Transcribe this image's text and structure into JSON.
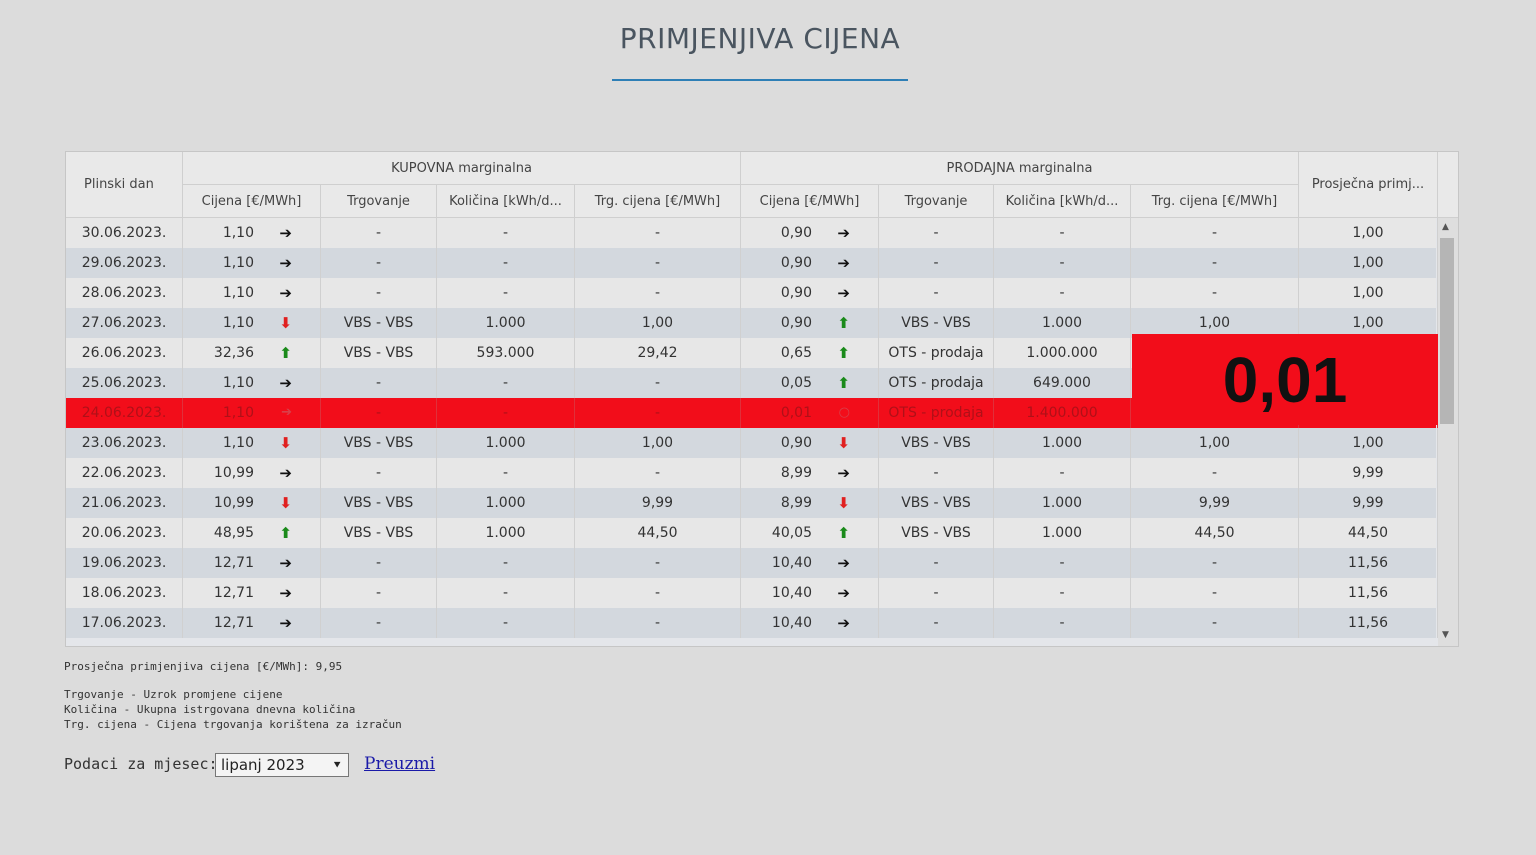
{
  "title": "PRIMJENJIVA CIJENA",
  "headers": {
    "plinski_dan": "Plinski dan",
    "kupovna": "KUPOVNA marginalna",
    "prodajna": "PRODAJNA marginalna",
    "prosjecna": "Prosječna primj...",
    "cijena": "Cijena [€/MWh]",
    "trgovanje": "Trgovanje",
    "kolicina": "Količina [kWh/d...",
    "trg_cijena": "Trg. cijena [€/MWh]"
  },
  "rows": [
    {
      "date": "30.06.2023.",
      "buy_price": "1,10",
      "buy_dir": "flat",
      "buy_trade": "-",
      "buy_qty": "-",
      "buy_tprice": "-",
      "sell_price": "0,90",
      "sell_dir": "flat",
      "sell_trade": "-",
      "sell_qty": "-",
      "sell_tprice": "-",
      "avg": "1,00"
    },
    {
      "date": "29.06.2023.",
      "buy_price": "1,10",
      "buy_dir": "flat",
      "buy_trade": "-",
      "buy_qty": "-",
      "buy_tprice": "-",
      "sell_price": "0,90",
      "sell_dir": "flat",
      "sell_trade": "-",
      "sell_qty": "-",
      "sell_tprice": "-",
      "avg": "1,00"
    },
    {
      "date": "28.06.2023.",
      "buy_price": "1,10",
      "buy_dir": "flat",
      "buy_trade": "-",
      "buy_qty": "-",
      "buy_tprice": "-",
      "sell_price": "0,90",
      "sell_dir": "flat",
      "sell_trade": "-",
      "sell_qty": "-",
      "sell_tprice": "-",
      "avg": "1,00"
    },
    {
      "date": "27.06.2023.",
      "buy_price": "1,10",
      "buy_dir": "down",
      "buy_trade": "VBS - VBS",
      "buy_qty": "1.000",
      "buy_tprice": "1,00",
      "sell_price": "0,90",
      "sell_dir": "up",
      "sell_trade": "VBS - VBS",
      "sell_qty": "1.000",
      "sell_tprice": "1,00",
      "avg": "1,00"
    },
    {
      "date": "26.06.2023.",
      "buy_price": "32,36",
      "buy_dir": "up",
      "buy_trade": "VBS - VBS",
      "buy_qty": "593.000",
      "buy_tprice": "29,42",
      "sell_price": "0,65",
      "sell_dir": "up",
      "sell_trade": "OTS - prodaja",
      "sell_qty": "1.000.000",
      "sell_tprice": "",
      "avg": ""
    },
    {
      "date": "25.06.2023.",
      "buy_price": "1,10",
      "buy_dir": "flat",
      "buy_trade": "-",
      "buy_qty": "-",
      "buy_tprice": "-",
      "sell_price": "0,05",
      "sell_dir": "up",
      "sell_trade": "OTS - prodaja",
      "sell_qty": "649.000",
      "sell_tprice": "",
      "avg": ""
    },
    {
      "date": "24.06.2023.",
      "buy_price": "1,10",
      "buy_dir": "flat",
      "buy_trade": "-",
      "buy_qty": "-",
      "buy_tprice": "-",
      "sell_price": "0,01",
      "sell_dir": "circle",
      "sell_trade": "OTS - prodaja",
      "sell_qty": "1.400.000",
      "sell_tprice": "",
      "avg": "",
      "highlight": true
    },
    {
      "date": "23.06.2023.",
      "buy_price": "1,10",
      "buy_dir": "down",
      "buy_trade": "VBS - VBS",
      "buy_qty": "1.000",
      "buy_tprice": "1,00",
      "sell_price": "0,90",
      "sell_dir": "down",
      "sell_trade": "VBS - VBS",
      "sell_qty": "1.000",
      "sell_tprice": "1,00",
      "avg": "1,00"
    },
    {
      "date": "22.06.2023.",
      "buy_price": "10,99",
      "buy_dir": "flat",
      "buy_trade": "-",
      "buy_qty": "-",
      "buy_tprice": "-",
      "sell_price": "8,99",
      "sell_dir": "flat",
      "sell_trade": "-",
      "sell_qty": "-",
      "sell_tprice": "-",
      "avg": "9,99"
    },
    {
      "date": "21.06.2023.",
      "buy_price": "10,99",
      "buy_dir": "down",
      "buy_trade": "VBS - VBS",
      "buy_qty": "1.000",
      "buy_tprice": "9,99",
      "sell_price": "8,99",
      "sell_dir": "down",
      "sell_trade": "VBS - VBS",
      "sell_qty": "1.000",
      "sell_tprice": "9,99",
      "avg": "9,99"
    },
    {
      "date": "20.06.2023.",
      "buy_price": "48,95",
      "buy_dir": "up",
      "buy_trade": "VBS - VBS",
      "buy_qty": "1.000",
      "buy_tprice": "44,50",
      "sell_price": "40,05",
      "sell_dir": "up",
      "sell_trade": "VBS - VBS",
      "sell_qty": "1.000",
      "sell_tprice": "44,50",
      "avg": "44,50"
    },
    {
      "date": "19.06.2023.",
      "buy_price": "12,71",
      "buy_dir": "flat",
      "buy_trade": "-",
      "buy_qty": "-",
      "buy_tprice": "-",
      "sell_price": "10,40",
      "sell_dir": "flat",
      "sell_trade": "-",
      "sell_qty": "-",
      "sell_tprice": "-",
      "avg": "11,56"
    },
    {
      "date": "18.06.2023.",
      "buy_price": "12,71",
      "buy_dir": "flat",
      "buy_trade": "-",
      "buy_qty": "-",
      "buy_tprice": "-",
      "sell_price": "10,40",
      "sell_dir": "flat",
      "sell_trade": "-",
      "sell_qty": "-",
      "sell_tprice": "-",
      "avg": "11,56"
    },
    {
      "date": "17.06.2023.",
      "buy_price": "12,71",
      "buy_dir": "flat",
      "buy_trade": "-",
      "buy_qty": "-",
      "buy_tprice": "-",
      "sell_price": "10,40",
      "sell_dir": "flat",
      "sell_trade": "-",
      "sell_qty": "-",
      "sell_tprice": "-",
      "avg": "11,56"
    }
  ],
  "highlight_value": "0,01",
  "notes": {
    "average": "Prosječna primjenjiva cijena [€/MWh]: 9,95",
    "legend1": "Trgovanje - Uzrok promjene cijene",
    "legend2": "Količina - Ukupna istrgovana dnevna količina",
    "legend3": "Trg. cijena - Cijena trgovanja korištena za izračun"
  },
  "month": {
    "label": "Podaci za mjesec:",
    "selected": "lipanj 2023",
    "download": "Preuzmi"
  },
  "colors": {
    "highlight": "#f20d1a",
    "arrow_up": "#1a8a1a",
    "arrow_down": "#e02020",
    "title_rule": "#2e7fb6"
  }
}
